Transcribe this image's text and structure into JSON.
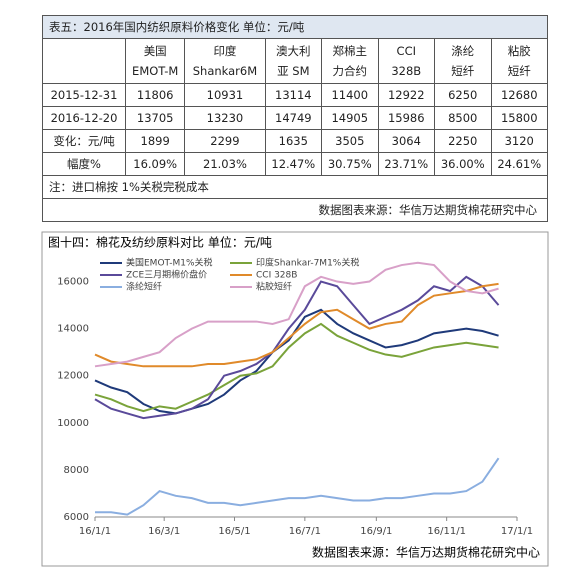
{
  "table": {
    "title": "表五：2016年国内纺织原料价格变化  单位：元/吨",
    "header": [
      [
        "美国",
        "EMOT-M"
      ],
      [
        "印度",
        "Shankar6M"
      ],
      [
        "澳大利",
        "亚 SM"
      ],
      [
        "郑棉主",
        "力合约"
      ],
      [
        "CCI",
        "328B"
      ],
      [
        "涤纶",
        "短纤"
      ],
      [
        "粘胶",
        "短纤"
      ]
    ],
    "rows": [
      [
        "2015-12-31",
        11806,
        10931,
        13114,
        11400,
        12922,
        6250,
        12680
      ],
      [
        "2016-12-20",
        13705,
        13230,
        14749,
        14905,
        15986,
        8500,
        15800
      ],
      [
        "变化：元/吨",
        1899,
        2299,
        1635,
        3505,
        3064,
        2250,
        3120
      ],
      [
        "幅度%",
        "16.09%",
        "21.03%",
        "12.47%",
        "30.75%",
        "23.71%",
        "36.00%",
        "24.61%"
      ]
    ],
    "note": "注：进口棉按 1%关税完税成本",
    "source": "数据图表来源：华信万达期货棉花研究中心"
  },
  "chart_data": {
    "type": "line",
    "title": "图十四：棉花及纺纱原料对比     单位：元/吨",
    "source": "数据图表来源：华信万达期货棉花研究中心",
    "x": [
      0,
      14,
      28,
      42,
      56,
      70,
      84,
      98,
      112,
      126,
      140,
      154,
      168,
      182,
      196,
      210,
      224,
      238,
      252,
      266,
      280,
      294,
      308,
      322,
      336,
      350
    ],
    "xlim": [
      0,
      366
    ],
    "xticks": [
      {
        "value": 0,
        "label": "16/1/1"
      },
      {
        "value": 60,
        "label": "16/3/1"
      },
      {
        "value": 121,
        "label": "16/5/1"
      },
      {
        "value": 182,
        "label": "16/7/1"
      },
      {
        "value": 244,
        "label": "16/9/1"
      },
      {
        "value": 305,
        "label": "16/11/1"
      },
      {
        "value": 366,
        "label": "17/1/1"
      }
    ],
    "ylim": [
      6000,
      17000
    ],
    "yticks": [
      6000,
      8000,
      10000,
      12000,
      14000,
      16000
    ],
    "series": [
      {
        "name": "美国EMOT-M1%关税",
        "color": "#1f3a7a",
        "values": [
          11800,
          11500,
          11300,
          10800,
          10500,
          10400,
          10600,
          10800,
          11200,
          11800,
          12200,
          13000,
          13500,
          14500,
          14800,
          14200,
          13800,
          13500,
          13200,
          13300,
          13500,
          13800,
          13900,
          14000,
          13900,
          13700
        ]
      },
      {
        "name": "印度Shankar-7M1%关税",
        "color": "#7aa33a",
        "values": [
          11200,
          11000,
          10700,
          10500,
          10700,
          10600,
          10900,
          11200,
          11600,
          12000,
          12100,
          12400,
          13200,
          13800,
          14200,
          13700,
          13400,
          13100,
          12900,
          12800,
          13000,
          13200,
          13300,
          13400,
          13300,
          13200
        ]
      },
      {
        "name": "ZCE三月期棉价盘价",
        "color": "#5a4a9a",
        "values": [
          11000,
          10600,
          10400,
          10200,
          10300,
          10400,
          10600,
          11000,
          12000,
          12200,
          12500,
          13000,
          14000,
          14800,
          16000,
          15800,
          15000,
          14200,
          14500,
          14800,
          15200,
          15800,
          15600,
          16200,
          15800,
          15000
        ]
      },
      {
        "name": "CCI 328B",
        "color": "#e08a2a",
        "values": [
          12900,
          12600,
          12500,
          12400,
          12400,
          12400,
          12400,
          12500,
          12500,
          12600,
          12700,
          13000,
          13600,
          14200,
          14700,
          14800,
          14400,
          14000,
          14200,
          14300,
          15000,
          15400,
          15500,
          15600,
          15800,
          15900
        ]
      },
      {
        "name": "涤纶短纤",
        "color": "#8aaee0",
        "values": [
          6200,
          6200,
          6100,
          6500,
          7100,
          6900,
          6800,
          6600,
          6600,
          6500,
          6600,
          6700,
          6800,
          6800,
          6900,
          6800,
          6700,
          6700,
          6800,
          6800,
          6900,
          7000,
          7000,
          7100,
          7500,
          8500
        ]
      },
      {
        "name": "粘胶短纤",
        "color": "#d8a0c8",
        "values": [
          12400,
          12500,
          12600,
          12800,
          13000,
          13600,
          14000,
          14300,
          14300,
          14300,
          14300,
          14200,
          14400,
          15800,
          16200,
          16000,
          15900,
          16000,
          16500,
          16700,
          16800,
          16700,
          16000,
          15600,
          15500,
          15700
        ]
      }
    ],
    "grid": false
  }
}
